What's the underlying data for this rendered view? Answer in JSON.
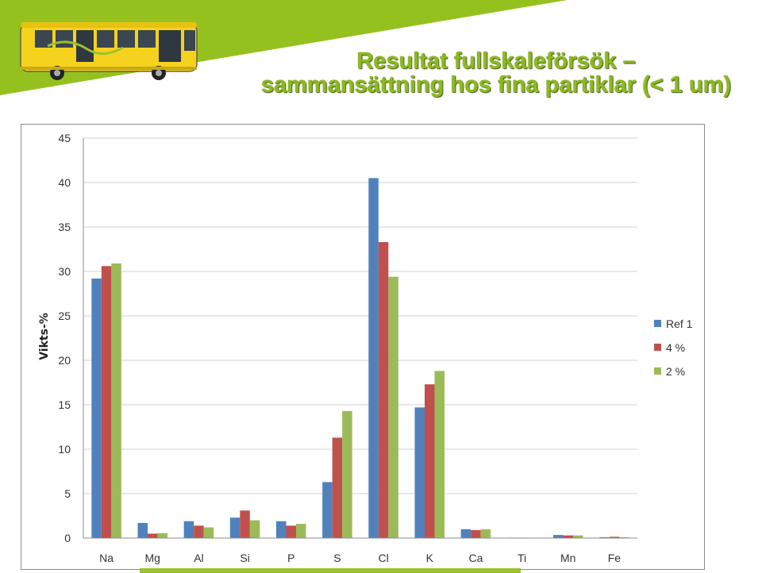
{
  "slide": {
    "title_line1": "Resultat fullskaleförsök –",
    "title_line2": "sammansättning hos fina partiklar (< 1 um)"
  },
  "colors": {
    "banner_green": "#95c11f",
    "title_green": "#8dbb1c",
    "bus_yellow": "#f5d21e"
  },
  "chart_data": {
    "type": "bar",
    "title": "",
    "xlabel": "",
    "ylabel": "Vikts-%",
    "ylim": [
      0,
      45
    ],
    "yticks": [
      0,
      5,
      10,
      15,
      20,
      25,
      30,
      35,
      40,
      45
    ],
    "grid": true,
    "legend_position": "right",
    "categories": [
      "Na",
      "Mg",
      "Al",
      "Si",
      "P",
      "S",
      "Cl",
      "K",
      "Ca",
      "Ti",
      "Mn",
      "Fe"
    ],
    "series": [
      {
        "name": "Ref 1",
        "color": "#4f81bd",
        "values": [
          29.2,
          1.7,
          1.9,
          2.3,
          1.9,
          6.3,
          40.5,
          14.7,
          1.0,
          0.05,
          0.35,
          0.1
        ]
      },
      {
        "name": "4 %",
        "color": "#c0504d",
        "values": [
          30.6,
          0.5,
          1.4,
          3.1,
          1.4,
          11.3,
          33.3,
          17.3,
          0.9,
          0.05,
          0.3,
          0.15
        ]
      },
      {
        "name": "2 %",
        "color": "#9bbb59",
        "values": [
          30.9,
          0.55,
          1.2,
          2.0,
          1.6,
          14.3,
          29.4,
          18.8,
          1.0,
          0.05,
          0.3,
          0.1
        ]
      }
    ]
  }
}
